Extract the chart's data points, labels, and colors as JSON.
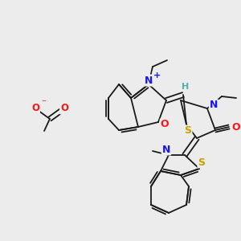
{
  "bg_color": "#ececec",
  "bond_color": "#1a1a1a",
  "bond_lw": 1.3,
  "atom_colors": {
    "N": "#1414ff",
    "O": "#ff1414",
    "S": "#c8a000",
    "H": "#50b0b0",
    "plus": "#1414ff",
    "minus": "#ff1414"
  },
  "font_size": 7.0
}
